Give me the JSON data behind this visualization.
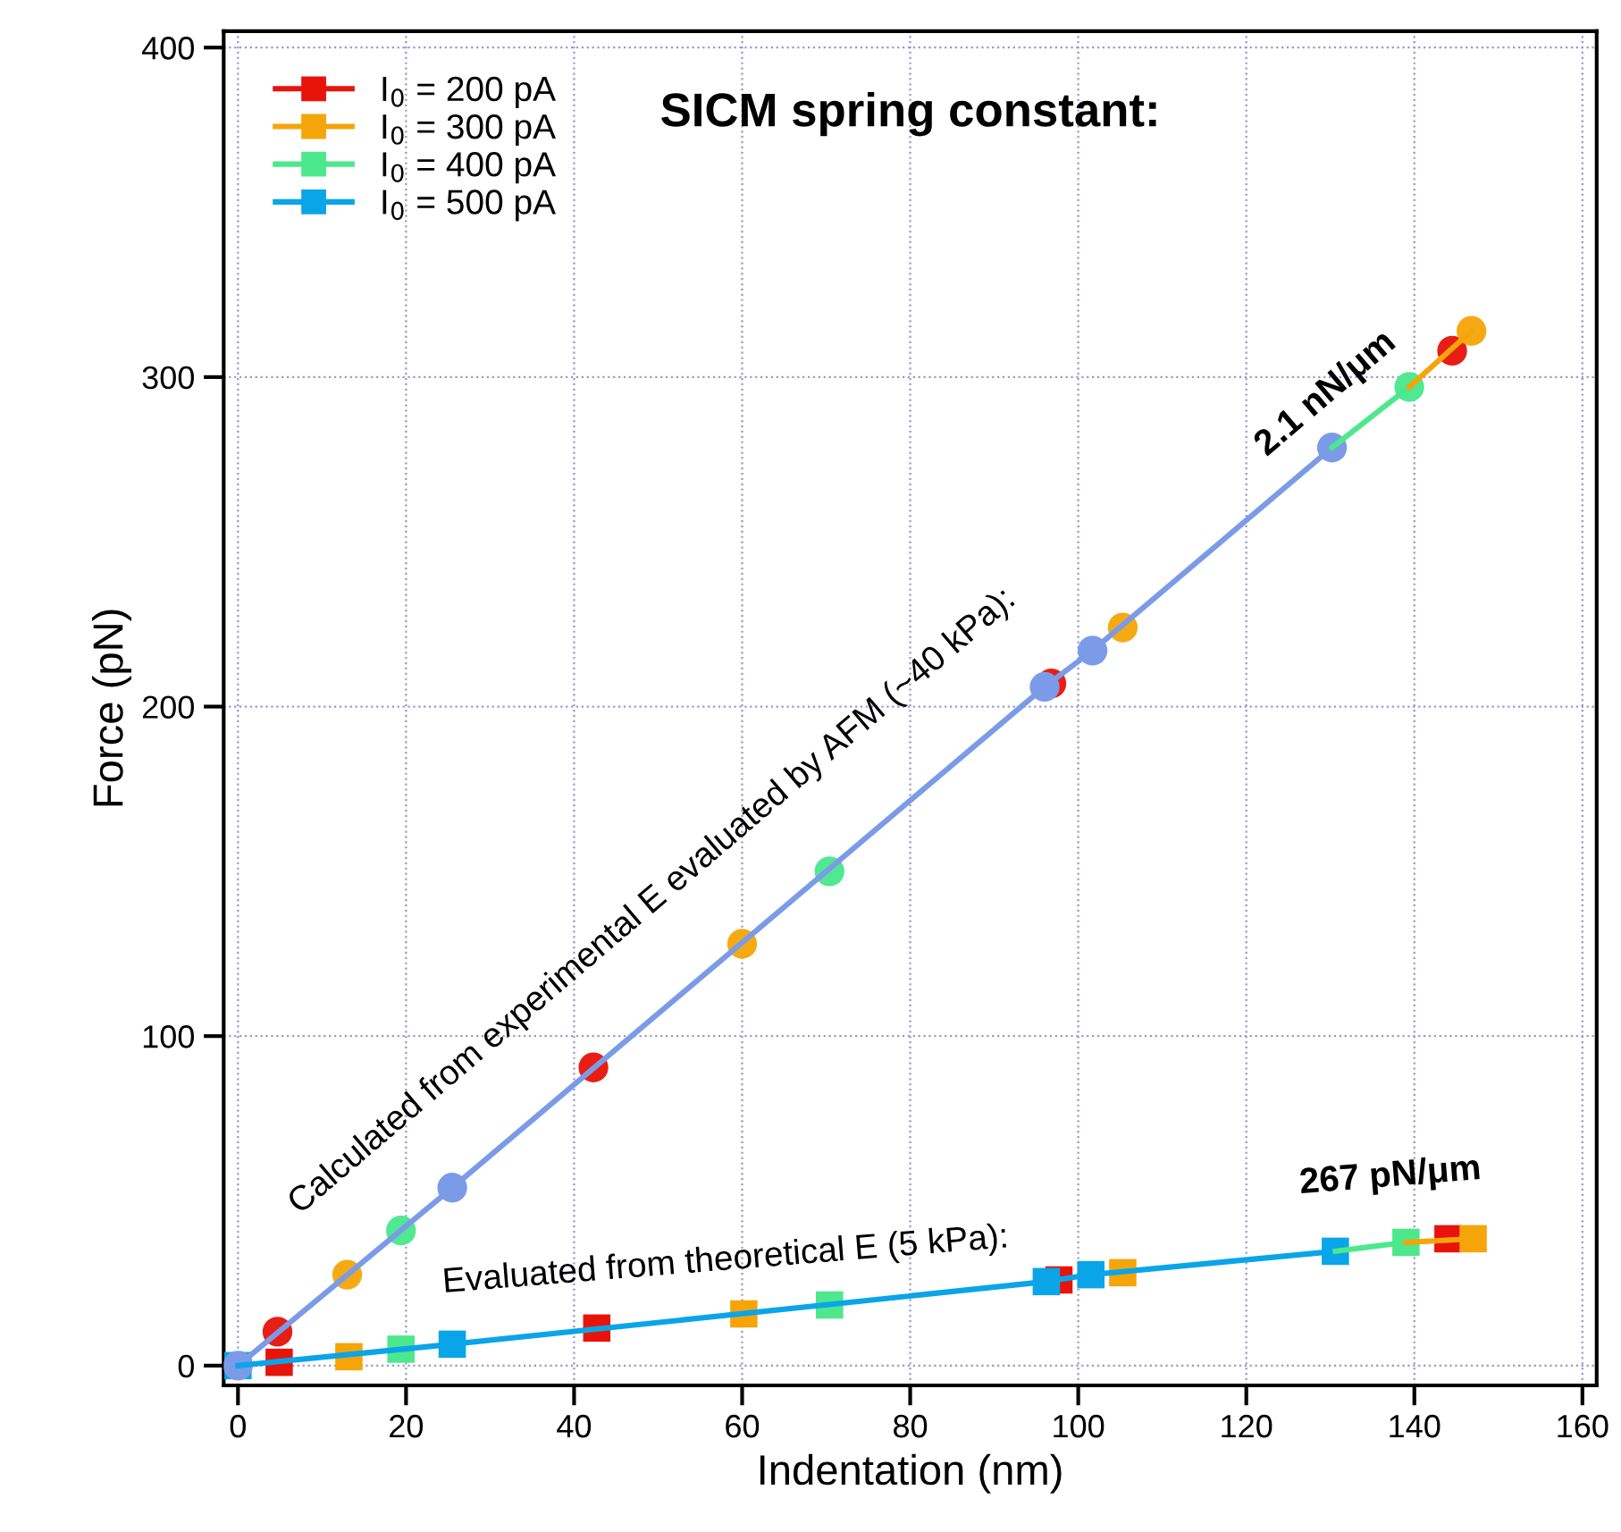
{
  "chart_data": {
    "type": "scatter",
    "title": "SICM spring constant:",
    "xlabel": "Indentation (nm)",
    "ylabel": "Force (pN)",
    "xlim": [
      -1.7,
      161.7
    ],
    "ylim": [
      -6,
      405
    ],
    "xticks": [
      0,
      20,
      40,
      60,
      80,
      100,
      120,
      140,
      160
    ],
    "yticks": [
      0,
      100,
      200,
      300,
      400
    ],
    "grid": true,
    "legend": "top left",
    "line_style": "solid",
    "annotations": [
      "Calculated from experimental E evaluated by AFM (~40 kPa):",
      "2.1 nN/μm",
      "Evaluated from theoretical E (5 kPa):",
      "267 pN/μm"
    ],
    "series": [
      {
        "type": "line",
        "color": "#7b9be8",
        "marker": "none",
        "x": [
          0,
          25.5,
          96,
          101.7,
          130.2
        ],
        "values": [
          0,
          54,
          206,
          217,
          278.6
        ]
      },
      {
        "type": "line",
        "color": "#4de88c",
        "marker": "none",
        "x": [
          130.2,
          139.4
        ],
        "values": [
          278.6,
          297
        ]
      },
      {
        "type": "line",
        "color": "#f5a50a",
        "marker": "none",
        "x": [
          139.4,
          146.8
        ],
        "values": [
          297,
          314
        ]
      },
      {
        "type": "line",
        "color": "#0aa5e8",
        "marker": "none",
        "x": [
          0,
          25.5,
          96.2,
          101.5,
          130.6
        ],
        "values": [
          0,
          6.5,
          25.5,
          27.6,
          34.7
        ]
      },
      {
        "type": "line",
        "color": "#4de88c",
        "marker": "none",
        "x": [
          130.6,
          139
        ],
        "values": [
          34.7,
          37.4
        ]
      },
      {
        "type": "line",
        "color": "#f5a50a",
        "marker": "none",
        "x": [
          139,
          147
        ],
        "values": [
          37.4,
          38.5
        ]
      },
      {
        "name": "I$_{0}$ = 200 pA",
        "color": "#e8140c",
        "marker": "square",
        "x": [
          4.9,
          42.7,
          97.7,
          144
        ],
        "values": [
          1,
          11.4,
          26,
          38.5
        ]
      },
      {
        "name": "I$_{0}$ = 300 pA",
        "color": "#f5a50a",
        "marker": "square",
        "x": [
          13.2,
          60.2,
          105.3,
          147
        ],
        "values": [
          2.7,
          15.7,
          28.2,
          38.5
        ]
      },
      {
        "name": "I$_{0}$ = 400 pA",
        "color": "#4de88c",
        "marker": "square",
        "x": [
          19.4,
          70.4,
          139
        ],
        "values": [
          5,
          18.4,
          37.4
        ]
      },
      {
        "name": "I$_{0}$ = 500 pA",
        "color": "#0aa5e8",
        "marker": "square",
        "x": [
          0,
          25.5,
          96.2,
          101.5,
          130.6
        ],
        "values": [
          0,
          6.5,
          25.5,
          27.6,
          34.7
        ]
      },
      {
        "color": "#e81e14",
        "marker": "circle",
        "x": [
          4.7,
          42.3,
          96.8,
          144.5
        ],
        "values": [
          10.3,
          90.5,
          207,
          308
        ]
      },
      {
        "color": "#f5aa14",
        "marker": "circle",
        "x": [
          13,
          60,
          105.3,
          146.8
        ],
        "values": [
          27.6,
          128,
          224,
          314
        ]
      },
      {
        "color": "#50e890",
        "marker": "circle",
        "x": [
          19.4,
          70.4,
          139.4
        ],
        "values": [
          41,
          150,
          297
        ]
      },
      {
        "color": "#7b9be8",
        "marker": "circle",
        "x": [
          0,
          25.5,
          96,
          101.7,
          130.2
        ],
        "values": [
          0,
          54,
          206,
          217,
          278.6
        ]
      }
    ]
  }
}
